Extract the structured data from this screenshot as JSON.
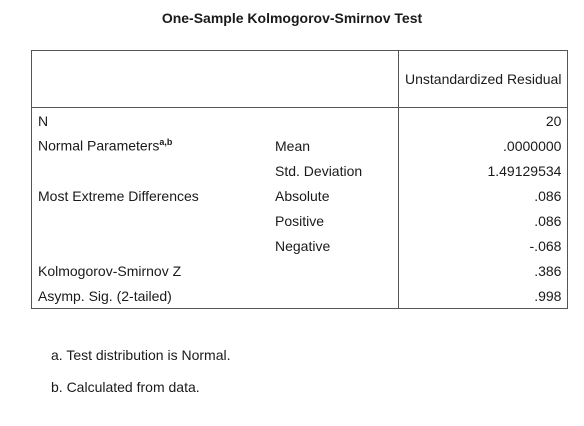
{
  "title": "One-Sample Kolmogorov-Smirnov Test",
  "table": {
    "header": "Unstandardized Residual",
    "rows": [
      {
        "label": "N",
        "value": "20"
      },
      {
        "label": "Normal Parameters",
        "sup": "a,b",
        "stat": "Mean",
        "value": ".0000000"
      },
      {
        "stat": "Std. Deviation",
        "value": "1.49129534"
      },
      {
        "label": "Most Extreme Differences",
        "stat": "Absolute",
        "value": ".086"
      },
      {
        "stat": "Positive",
        "value": ".086"
      },
      {
        "stat": "Negative",
        "value": "-.068"
      },
      {
        "label": "Kolmogorov-Smirnov Z",
        "value": ".386"
      },
      {
        "label": "Asymp. Sig. (2-tailed)",
        "value": ".998"
      }
    ]
  },
  "footnotes": [
    "a. Test distribution is Normal.",
    "b. Calculated from data."
  ]
}
